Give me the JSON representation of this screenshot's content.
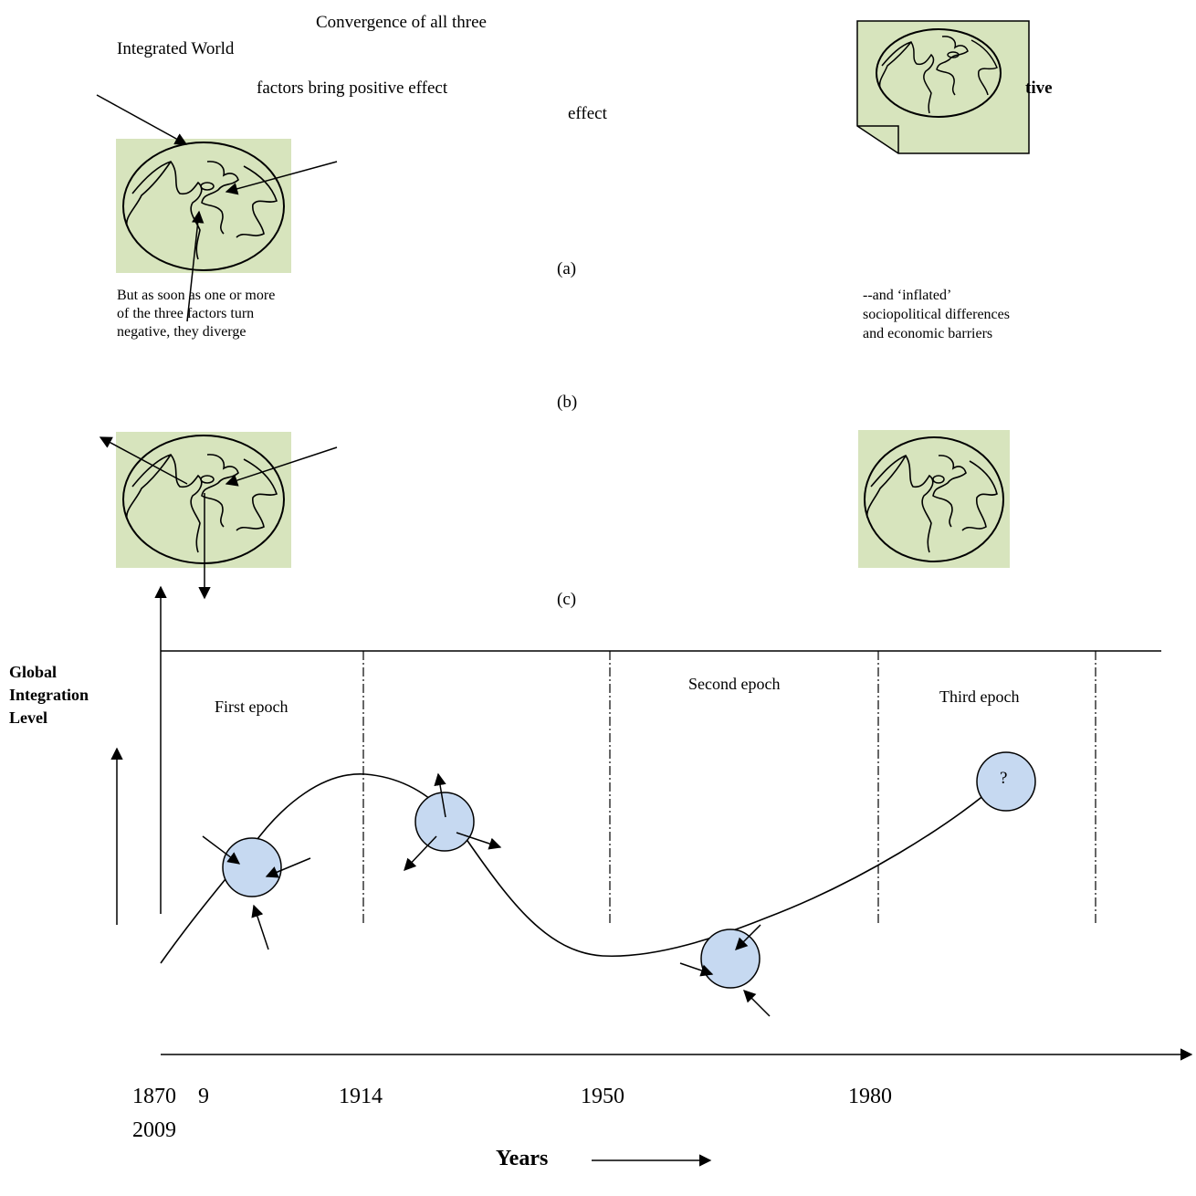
{
  "text": {
    "convergence": "Convergence of all three",
    "integrated_world": "Integrated World",
    "factors_positive": "factors bring positive effect",
    "effect": "effect",
    "ative_fragment": "tive",
    "label_a": "(a)",
    "but_as_soon_line1": "But as soon as one or more",
    "but_as_soon_line2": "of the three factors turn",
    "but_as_soon_line3": "negative, they diverge",
    "inflated_line1": "--and ‘inflated’",
    "inflated_line2": "sociopolitical differences",
    "inflated_line3": "and economic barriers",
    "label_b": "(b)",
    "label_c": "(c)",
    "y_axis_line1": "Global",
    "y_axis_line2": "Integration",
    "y_axis_line3": "Level",
    "first_epoch": "First epoch",
    "second_epoch": "Second epoch",
    "third_epoch": "Third epoch",
    "question_mark": "?",
    "x_axis_title": "Years"
  },
  "years": {
    "y1870": "1870",
    "y9": "9",
    "y1914": "1914",
    "y1950": "1950",
    "y1980": "1980",
    "y2009": "2009"
  },
  "colors": {
    "panel_green": "#d7e4bd",
    "node_blue": "#c6d9f1",
    "ink": "#000000"
  }
}
